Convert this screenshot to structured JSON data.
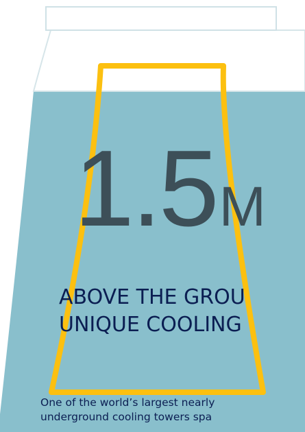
{
  "stat": {
    "value": "1.5",
    "unit": "M"
  },
  "headline": {
    "line1": "ABOVE THE GROU",
    "line2": "UNIQUE COOLING"
  },
  "description": {
    "line1": "One of the world’s largest nearly",
    "line2": "underground cooling towers spa"
  },
  "colors": {
    "tower_fill": "#89bfcc",
    "tower_top": "#ffffff",
    "tower_outline": "#cfe1e6",
    "marker_outline": "#fcc010",
    "number_text": "#3d4f58",
    "body_text": "#0b1e52"
  }
}
